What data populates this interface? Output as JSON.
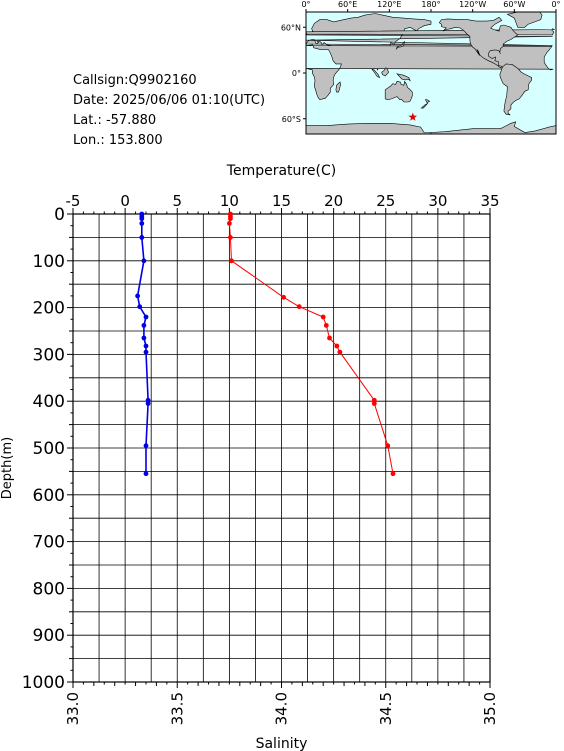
{
  "info": {
    "callsign": "Callsign:Q9902160",
    "date": "Date:  2025/06/06 01:10(UTC)",
    "lat": "Lat.:  -57.880",
    "lon": "Lon.:  153.800"
  },
  "map": {
    "top_ticks": [
      "0°",
      "60°E",
      "120°E",
      "180°",
      "120°W",
      "60°W",
      "0°"
    ],
    "left_ticks": [
      "60°N",
      "0°",
      "60°S"
    ],
    "station": {
      "lat": -57.88,
      "lon": 153.8
    },
    "marker_color": "#e00000",
    "ocean_color": "#d6ffff",
    "land_color": "#c0c0c0"
  },
  "chart_data": {
    "type": "line",
    "ylabel": "Depth(m)",
    "ylim": [
      1000,
      0
    ],
    "yticks": [
      0,
      100,
      200,
      300,
      400,
      500,
      600,
      700,
      800,
      900,
      1000
    ],
    "temperature_axis": {
      "label": "Temperature(C)",
      "lim": [
        -5,
        35
      ],
      "ticks": [
        -5,
        0,
        5,
        10,
        15,
        20,
        25,
        30,
        35
      ],
      "tick_labels": [
        "-5",
        "0",
        "5",
        "10",
        "15",
        "20",
        "25",
        "30",
        "35"
      ]
    },
    "salinity_axis": {
      "label": "Salinity",
      "lim": [
        33.0,
        35.0
      ],
      "ticks": [
        33.0,
        33.5,
        34.0,
        34.5,
        35.0
      ],
      "tick_labels": [
        "33.0",
        "33.5",
        "34.0",
        "34.5",
        "35.0"
      ]
    },
    "grid": true,
    "series": [
      {
        "axis": "temperature",
        "color": "#ff0000",
        "points": [
          [
            10.1,
            0
          ],
          [
            10.1,
            5
          ],
          [
            10.1,
            10
          ],
          [
            10.0,
            20
          ],
          [
            10.1,
            50
          ],
          [
            10.2,
            100
          ],
          [
            15.2,
            178
          ],
          [
            16.7,
            198
          ],
          [
            19.0,
            220
          ],
          [
            19.3,
            238
          ],
          [
            19.6,
            265
          ],
          [
            20.3,
            282
          ],
          [
            20.6,
            295
          ],
          [
            23.9,
            398
          ],
          [
            23.9,
            405
          ],
          [
            25.2,
            495
          ],
          [
            25.7,
            555
          ]
        ]
      },
      {
        "axis": "salinity",
        "color": "#0000e6",
        "points": [
          [
            33.33,
            0
          ],
          [
            33.33,
            5
          ],
          [
            33.33,
            10
          ],
          [
            33.33,
            20
          ],
          [
            33.33,
            50
          ],
          [
            33.34,
            100
          ],
          [
            33.31,
            175
          ],
          [
            33.32,
            198
          ],
          [
            33.35,
            220
          ],
          [
            33.34,
            238
          ],
          [
            33.34,
            265
          ],
          [
            33.35,
            282
          ],
          [
            33.35,
            295
          ],
          [
            33.36,
            398
          ],
          [
            33.36,
            405
          ],
          [
            33.35,
            495
          ],
          [
            33.35,
            555
          ]
        ]
      }
    ]
  }
}
